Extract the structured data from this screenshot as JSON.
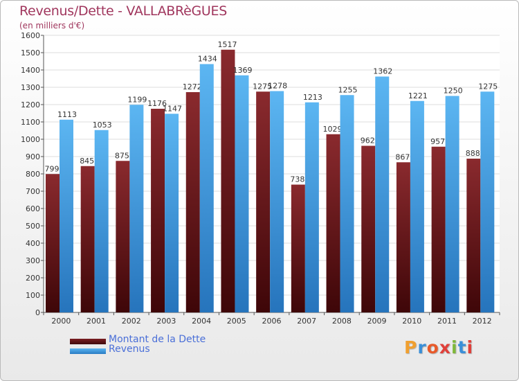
{
  "header": {
    "title": "Revenus/Dette - VALLABRèGUES",
    "subtitle": "(en milliers d'€)"
  },
  "chart_data": {
    "type": "bar",
    "title": "Revenus/Dette - VALLABRèGUES",
    "subtitle": "(en milliers d'€)",
    "categories": [
      "2000",
      "2001",
      "2002",
      "2003",
      "2004",
      "2005",
      "2006",
      "2007",
      "2008",
      "2009",
      "2010",
      "2011",
      "2012"
    ],
    "series": [
      {
        "name": "Montant de la Dette",
        "color": "#7a1e22",
        "values": [
          799,
          845,
          875,
          1176,
          1272,
          1517,
          1275,
          738,
          1029,
          962,
          867,
          957,
          888
        ],
        "labels": [
          "799",
          "845",
          "875",
          "1176",
          "1272",
          "1517",
          "1275",
          "738",
          "1029",
          "962",
          "867",
          "957",
          "888"
        ]
      },
      {
        "name": "Revenus",
        "color": "#4aa3e8",
        "values": [
          1113,
          1053,
          1199,
          1147,
          1434,
          1369,
          1278,
          1213,
          1255,
          1362,
          1221,
          1250,
          1275
        ],
        "labels": [
          "1113",
          "1053",
          "1199",
          "1147",
          "1434",
          "1369",
          "1278",
          "1213",
          "1255",
          "1362",
          "1221",
          "1250",
          "1275"
        ]
      }
    ],
    "ylim": [
      0,
      1600
    ],
    "yticks": [
      0,
      100,
      200,
      300,
      400,
      500,
      600,
      700,
      800,
      900,
      1000,
      1100,
      1200,
      1300,
      1400,
      1500,
      1600
    ],
    "grid": true,
    "legend_position": "bottom-left"
  },
  "legend": {
    "items": [
      {
        "label": "Montant de la Dette",
        "color": "#7a1e22"
      },
      {
        "label": "Revenus",
        "color": "#4aa3e8"
      }
    ]
  },
  "logo": {
    "text": "Proxiti",
    "letters": [
      "P",
      "r",
      "o",
      "x",
      "i",
      "t",
      "i"
    ],
    "colors": [
      "#f0a030",
      "#3a8fd8",
      "#e85a2a",
      "#e0403a",
      "#7fb83a",
      "#3a8fd8",
      "#e0403a"
    ]
  }
}
